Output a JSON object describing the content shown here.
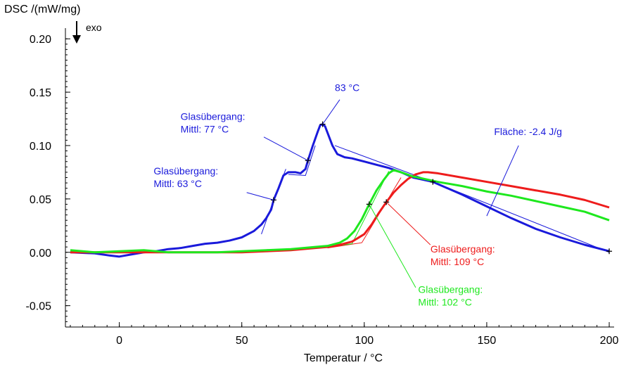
{
  "chart_data": {
    "type": "line",
    "xlabel": "Temperatur / °C",
    "ylabel": "DSC /(mW/mg)",
    "exo_label": "exo",
    "xlim": [
      -22,
      202
    ],
    "ylim": [
      -0.07,
      0.21
    ],
    "xticks": [
      0,
      50,
      100,
      150,
      200
    ],
    "yticks": [
      -0.05,
      0.0,
      0.05,
      0.1,
      0.15,
      0.2
    ],
    "xtick_labels": [
      "0",
      "50",
      "100",
      "150",
      "200"
    ],
    "ytick_labels": [
      "-0.05",
      "0.00",
      "0.05",
      "0.10",
      "0.15",
      "0.20"
    ],
    "grid": false,
    "colors": {
      "blue": "#1a1adb",
      "red": "#ee1c1c",
      "green": "#1ee81e"
    },
    "series": [
      {
        "color": "blue",
        "x": [
          -20,
          -10,
          -4,
          0,
          5,
          10,
          15,
          20,
          25,
          30,
          35,
          40,
          45,
          50,
          55,
          58,
          60,
          62,
          63,
          65,
          67,
          69,
          70,
          72,
          74,
          76,
          77,
          79,
          81,
          82,
          83,
          84,
          85,
          87,
          89,
          92,
          95,
          100,
          105,
          110,
          115,
          120,
          128,
          140,
          150,
          160,
          170,
          180,
          190,
          200
        ],
        "y": [
          0.0,
          -0.001,
          -0.003,
          -0.004,
          -0.002,
          0.0,
          0.001,
          0.003,
          0.004,
          0.006,
          0.008,
          0.009,
          0.011,
          0.014,
          0.02,
          0.026,
          0.032,
          0.04,
          0.049,
          0.06,
          0.072,
          0.075,
          0.075,
          0.075,
          0.074,
          0.078,
          0.086,
          0.1,
          0.113,
          0.119,
          0.12,
          0.118,
          0.112,
          0.1,
          0.092,
          0.089,
          0.088,
          0.085,
          0.082,
          0.079,
          0.075,
          0.07,
          0.066,
          0.054,
          0.043,
          0.032,
          0.022,
          0.014,
          0.007,
          0.001
        ]
      },
      {
        "color": "red",
        "x": [
          -20,
          -10,
          0,
          10,
          20,
          30,
          40,
          50,
          60,
          70,
          80,
          85,
          90,
          95,
          100,
          103,
          106,
          109,
          112,
          115,
          118,
          121,
          124,
          126,
          130,
          140,
          150,
          160,
          170,
          180,
          190,
          200
        ],
        "y": [
          0.0,
          0.0,
          0.0,
          0.0,
          0.0,
          0.0,
          0.0,
          0.0,
          0.001,
          0.002,
          0.004,
          0.005,
          0.007,
          0.01,
          0.017,
          0.026,
          0.037,
          0.047,
          0.056,
          0.063,
          0.069,
          0.073,
          0.075,
          0.075,
          0.074,
          0.07,
          0.066,
          0.062,
          0.058,
          0.054,
          0.049,
          0.042
        ]
      },
      {
        "color": "green",
        "x": [
          -20,
          -10,
          0,
          10,
          20,
          30,
          40,
          50,
          60,
          70,
          80,
          85,
          90,
          93,
          96,
          99,
          102,
          105,
          108,
          110,
          112,
          115,
          120,
          130,
          140,
          150,
          160,
          170,
          180,
          190,
          200
        ],
        "y": [
          0.002,
          0.0,
          0.001,
          0.002,
          0.0,
          0.0,
          0.0,
          0.001,
          0.002,
          0.003,
          0.005,
          0.006,
          0.009,
          0.013,
          0.02,
          0.031,
          0.045,
          0.058,
          0.068,
          0.074,
          0.077,
          0.075,
          0.071,
          0.066,
          0.062,
          0.057,
          0.053,
          0.048,
          0.043,
          0.038,
          0.03
        ]
      }
    ],
    "tangent_lines": [
      {
        "color": "blue",
        "points": [
          [
            58,
            0.017
          ],
          [
            63,
            0.049
          ],
          [
            68,
            0.078
          ]
        ]
      },
      {
        "color": "blue",
        "points": [
          [
            69,
            0.073
          ],
          [
            76,
            0.072
          ],
          [
            80,
            0.1
          ]
        ]
      },
      {
        "color": "blue",
        "points": [
          [
            88,
            0.1
          ],
          [
            128,
            0.066
          ],
          [
            200,
            0.0
          ]
        ]
      },
      {
        "color": "red",
        "points": [
          [
            85,
            0.004
          ],
          [
            99,
            0.009
          ],
          [
            115,
            0.07
          ]
        ]
      },
      {
        "color": "green",
        "points": [
          [
            85,
            0.005
          ],
          [
            95,
            0.008
          ],
          [
            110,
            0.076
          ]
        ]
      }
    ],
    "markers": [
      {
        "color": "blue",
        "x": 63,
        "y": 0.049
      },
      {
        "color": "blue",
        "x": 77,
        "y": 0.086
      },
      {
        "color": "blue",
        "x": 83,
        "y": 0.12
      },
      {
        "color": "blue",
        "x": 128,
        "y": 0.066
      },
      {
        "color": "blue",
        "x": 200,
        "y": 0.001
      },
      {
        "color": "red",
        "x": 109,
        "y": 0.047
      },
      {
        "color": "green",
        "x": 102,
        "y": 0.045
      }
    ],
    "annotations": [
      {
        "lines": [
          "83 °C"
        ],
        "color": "blue",
        "text_at": [
          88,
          0.151
        ],
        "leader": [
          [
            83,
            0.12
          ],
          [
            90,
            0.143
          ]
        ]
      },
      {
        "lines": [
          "Glasübergang:",
          "Mittl:  77 °C"
        ],
        "color": "blue",
        "text_at": [
          25,
          0.124
        ],
        "leader": [
          [
            77,
            0.086
          ],
          [
            59,
            0.108
          ]
        ]
      },
      {
        "lines": [
          "Glasübergang:",
          "Mittl:  63 °C"
        ],
        "color": "blue",
        "text_at": [
          14,
          0.073
        ],
        "leader": [
          [
            63,
            0.049
          ],
          [
            52,
            0.056
          ]
        ]
      },
      {
        "lines": [
          "Fläche: -2.4 J/g"
        ],
        "color": "blue",
        "text_at": [
          153,
          0.11
        ],
        "leader": [
          [
            163,
            0.1
          ],
          [
            150,
            0.034
          ]
        ]
      },
      {
        "lines": [
          "Glasübergang:",
          "Mittl:  109 °C"
        ],
        "color": "red",
        "text_at": [
          127,
          0.0
        ],
        "leader": [
          [
            109,
            0.047
          ],
          [
            127,
            0.007
          ]
        ]
      },
      {
        "lines": [
          "Glasübergang:",
          "Mittl:  102 °C"
        ],
        "color": "green",
        "text_at": [
          122,
          -0.038
        ],
        "leader": [
          [
            102,
            0.045
          ],
          [
            121,
            -0.033
          ]
        ]
      }
    ]
  }
}
